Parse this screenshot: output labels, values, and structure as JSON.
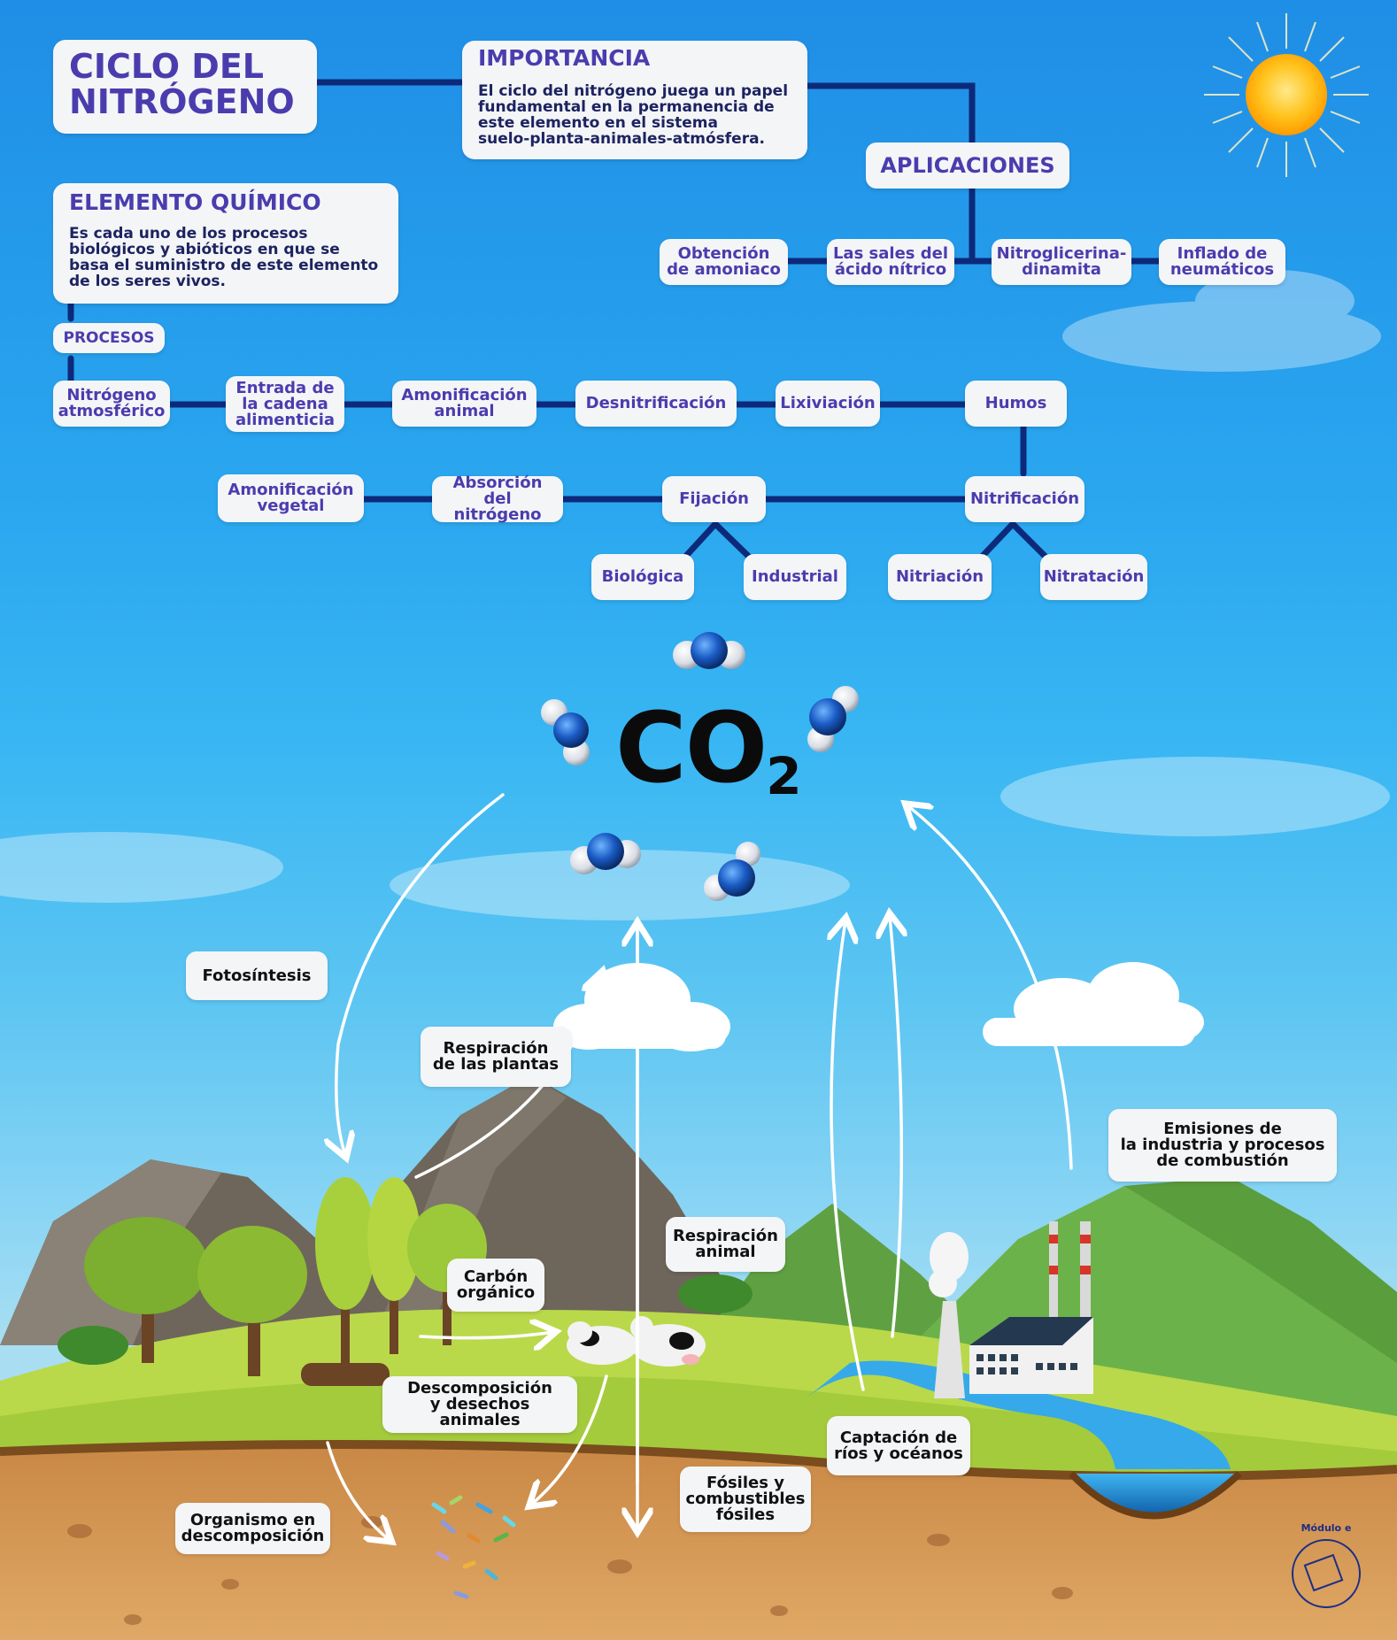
{
  "title": "CICLO DEL\nNITRÓGENO",
  "importancia": {
    "heading": "IMPORTANCIA",
    "text": "El ciclo del nitrógeno juega un papel\nfundamental en la permanencia de\neste elemento en el sistema\nsuelo-planta-animales-atmósfera."
  },
  "elemento": {
    "heading": "ELEMENTO QUÍMICO",
    "text": "Es cada uno de los procesos\nbiológicos y abióticos en que se\nbasa el suministro de este elemento\nde los seres vivos."
  },
  "aplicaciones": {
    "heading": "APLICACIONES",
    "items": [
      "Obtención\nde amoniaco",
      "Las sales del\nácido nítrico",
      "Nitroglicerina-\ndinamita",
      "Inflado de\nneumáticos"
    ]
  },
  "procesos": {
    "label": "PROCESOS",
    "row1": [
      "Nitrógeno\natmosférico",
      "Entrada de\nla cadena\nalimenticia",
      "Amonificación\nanimal",
      "Desnitrificación",
      "Lixiviación",
      "Humos"
    ],
    "row2": [
      "Amonificación\nvegetal",
      "Absorción\ndel nitrógeno",
      "Fijación",
      "Nitrificación"
    ],
    "fijacion_sub": [
      "Biológica",
      "Industrial"
    ],
    "nitrificacion_sub": [
      "Nitriación",
      "Nitratación"
    ]
  },
  "co2": {
    "main": "CO",
    "sub": "2"
  },
  "carbon_labels": {
    "fotosintesis": "Fotosíntesis",
    "respiracion_plantas": "Respiración\nde las plantas",
    "carbon_organico": "Carbón\norgánico",
    "respiracion_animal": "Respiración\nanimal",
    "descomposicion": "Descomposición\ny desechos animales",
    "organismo": "Organismo en\ndescomposición",
    "fosiles": "Fósiles y\ncombustibles\nfósiles",
    "captacion": "Captación de\nríos y océanos",
    "emisiones": "Emisiones de\nla industria y procesos\nde combustión"
  },
  "logo": {
    "text": "Módulo e"
  },
  "colors": {
    "line": "#0d2a7a",
    "label": "#4b3cae",
    "sky": "#2aa6ef",
    "sun": "#ffb700"
  }
}
